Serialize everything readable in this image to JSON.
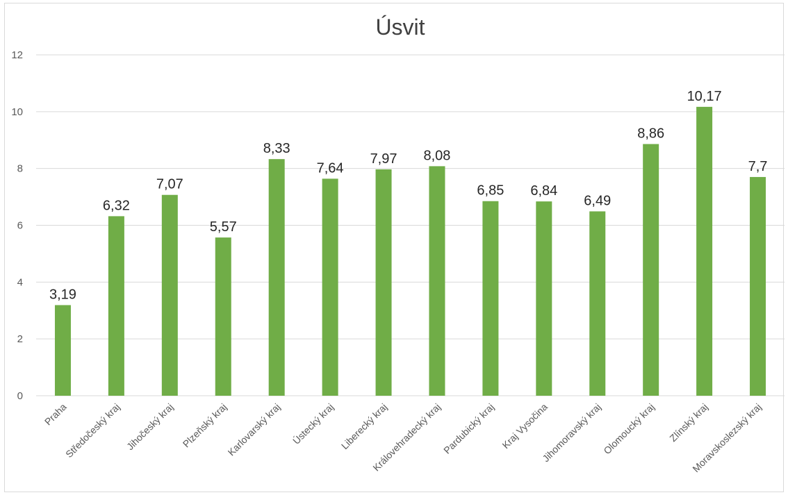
{
  "chart_data": {
    "type": "bar",
    "title": "Úsvit",
    "categories": [
      "Praha",
      "Středočeský kraj",
      "Jihočeský kraj",
      "Plzeňský kraj",
      "Karlovarský kraj",
      "Ústecký kraj",
      "Liberecký kraj",
      "Královehradecký kraj",
      "Pardubický kraj",
      "Kraj Vysočina",
      "Jihomoravský kraj",
      "Olomoucký kraj",
      "Zlínský kraj",
      "Moravskoslezský kraj"
    ],
    "values": [
      3.19,
      6.32,
      7.07,
      5.57,
      8.33,
      7.64,
      7.97,
      8.08,
      6.85,
      6.84,
      6.49,
      8.86,
      10.17,
      7.7
    ],
    "value_labels": [
      "3,19",
      "6,32",
      "7,07",
      "5,57",
      "8,33",
      "7,64",
      "7,97",
      "8,08",
      "6,85",
      "6,84",
      "6,49",
      "8,86",
      "10,17",
      "7,7"
    ],
    "ylim": [
      0,
      12
    ],
    "yticks": [
      0,
      2,
      4,
      6,
      8,
      10,
      12
    ],
    "xlabel": "",
    "ylabel": "",
    "grid": true,
    "legend": "none",
    "bar_color": "#70ad47"
  }
}
